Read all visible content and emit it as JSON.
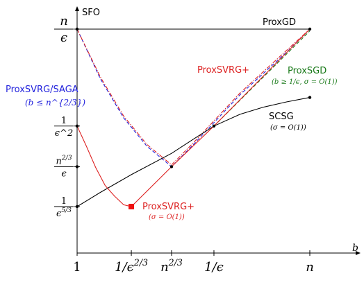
{
  "chart_data": {
    "type": "line",
    "ylabel": "SFO",
    "xlabel": "b",
    "x_ticks": [
      {
        "label": "1",
        "pos": 0
      },
      {
        "label": "1/ϵ^{2/3}",
        "pos": 0.233
      },
      {
        "label": "n^{2/3}",
        "pos": 0.406
      },
      {
        "label": "1/ϵ",
        "pos": 0.588
      },
      {
        "label": "n",
        "pos": 1
      }
    ],
    "y_ticks": [
      {
        "num": "1",
        "den": "ϵ^{5/3}",
        "pos": 0
      },
      {
        "num": "n^{2/3}",
        "den": "ϵ",
        "pos": 0.225
      },
      {
        "num": "1",
        "den": "ϵ^2",
        "pos": 0.454
      },
      {
        "num": "n",
        "den": "ϵ",
        "pos": 1
      }
    ],
    "series": [
      {
        "name": "ProxGD",
        "color": "#000000",
        "style": "solid",
        "points": [
          [
            0,
            1
          ],
          [
            1,
            1
          ]
        ]
      },
      {
        "name": "ProxSVRG/SAGA",
        "note": "(b ≤ n^{2/3})",
        "color": "#2222dd",
        "style": "dashed",
        "points": [
          [
            0,
            1
          ],
          [
            0.1,
            0.72
          ],
          [
            0.2,
            0.5
          ],
          [
            0.3,
            0.34
          ],
          [
            0.406,
            0.225
          ],
          [
            0.5,
            0.35
          ],
          [
            0.6,
            0.49
          ],
          [
            0.7,
            0.63
          ],
          [
            0.8,
            0.75
          ],
          [
            0.9,
            0.87
          ],
          [
            1,
            1
          ]
        ]
      },
      {
        "name": "ProxSVRG+",
        "color": "#dd2222",
        "style": "dashdot",
        "points": [
          [
            0,
            1
          ],
          [
            0.1,
            0.73
          ],
          [
            0.2,
            0.51
          ],
          [
            0.3,
            0.35
          ],
          [
            0.406,
            0.235
          ],
          [
            0.5,
            0.36
          ],
          [
            0.6,
            0.5
          ],
          [
            0.7,
            0.64
          ],
          [
            0.8,
            0.76
          ],
          [
            0.9,
            0.88
          ],
          [
            1,
            1
          ]
        ]
      },
      {
        "name": "ProxSGD",
        "note": "(b ≥ 1/ϵ, σ = O(1))",
        "color": "#1a7a1a",
        "style": "dashed",
        "points": [
          [
            0.588,
            0.454
          ],
          [
            1,
            0.99
          ]
        ]
      },
      {
        "name": "SCSG",
        "note": "(σ = O(1))",
        "color": "#000000",
        "style": "solid",
        "points": [
          [
            0,
            0
          ],
          [
            0.1,
            0.08
          ],
          [
            0.233,
            0.18
          ],
          [
            0.406,
            0.3
          ],
          [
            0.5,
            0.38
          ],
          [
            0.588,
            0.454
          ],
          [
            0.7,
            0.52
          ],
          [
            0.8,
            0.56
          ],
          [
            0.9,
            0.59
          ],
          [
            1,
            0.615
          ]
        ]
      },
      {
        "name": "ProxSVRG+",
        "note": "(σ = O(1))",
        "color": "#dd2222",
        "style": "solid",
        "points": [
          [
            0,
            0.454
          ],
          [
            0.04,
            0.34
          ],
          [
            0.08,
            0.22
          ],
          [
            0.12,
            0.12
          ],
          [
            0.16,
            0.06
          ],
          [
            0.2,
            0.01
          ],
          [
            0.233,
            0
          ],
          [
            0.406,
            0.225
          ],
          [
            0.588,
            0.454
          ],
          [
            1,
            1
          ]
        ]
      }
    ],
    "annotations": {
      "proxgd": "ProxGD",
      "proxsvrg_saga": "ProxSVRG/SAGA",
      "proxsvrg_saga_cond": "(b ≤ n^{2/3})",
      "proxsvrgplus_top": "ProxSVRG+",
      "proxsgd": "ProxSGD",
      "proxsgd_cond": "(b ≥ 1/ϵ, σ = O(1))",
      "scsg": "SCSG",
      "scsg_cond": "(σ = O(1))",
      "proxsvrgplus_bottom": "ProxSVRG+",
      "proxsvrgplus_bottom_cond": "(σ = O(1))"
    },
    "markers": [
      {
        "x": 0,
        "y": 1
      },
      {
        "x": 1,
        "y": 1
      },
      {
        "x": 0,
        "y": 0.454
      },
      {
        "x": 0,
        "y": 0.225
      },
      {
        "x": 0,
        "y": 0
      },
      {
        "x": 0.406,
        "y": 0.225
      },
      {
        "x": 0.588,
        "y": 0.454
      },
      {
        "x": 1,
        "y": 0.615
      }
    ],
    "min_marker": {
      "x": 0.233,
      "y": 0,
      "color": "#ee1111"
    }
  }
}
